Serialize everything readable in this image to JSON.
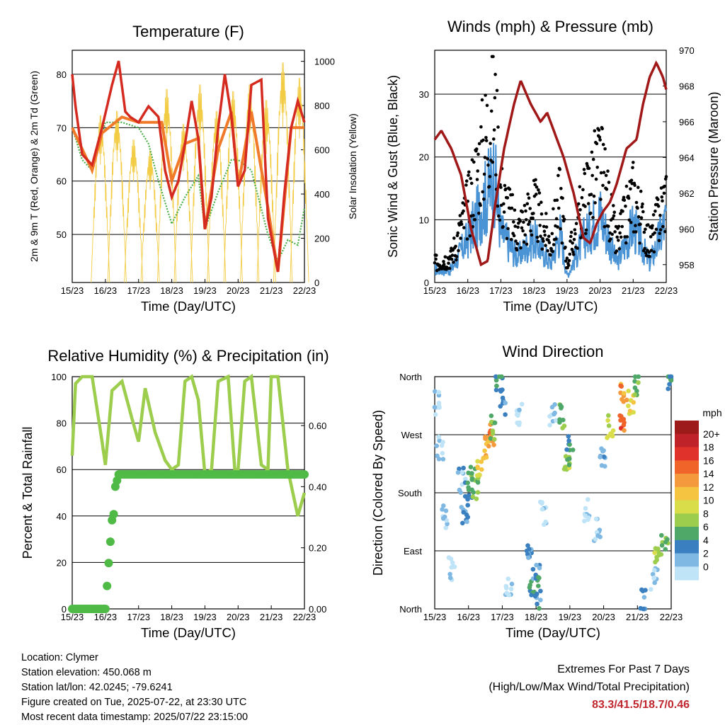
{
  "chart_data": [
    {
      "type": "line",
      "title": "Temperature (F)",
      "xlabel": "Time (Day/UTC)",
      "ylabel": "2m & 9m T (Red, Orange) & 2m Td (Green)",
      "y2label": "Solar Insolation (Yellow)",
      "x_ticks": [
        "15/23",
        "16/23",
        "17/23",
        "18/23",
        "19/23",
        "20/23",
        "21/23",
        "22/23"
      ],
      "y_ticks": [
        50,
        60,
        70,
        80
      ],
      "y2_ticks": [
        0,
        200,
        400,
        600,
        800,
        1000
      ],
      "ylim": [
        41,
        84.5
      ],
      "y2lim": [
        0,
        1050
      ],
      "grid": "horizontal",
      "series": [
        {
          "name": "2m T",
          "color": "#d42a20",
          "x": [
            0,
            0.1,
            0.3,
            0.6,
            0.9,
            1.2,
            1.4,
            1.6,
            1.75,
            2.0,
            2.3,
            2.6,
            2.8,
            3.0,
            3.2,
            3.4,
            3.6,
            3.8,
            4.0,
            4.2,
            4.4,
            4.6,
            4.8,
            5.0,
            5.2,
            5.4,
            5.7,
            5.9,
            6.2,
            6.4,
            6.6,
            6.8,
            7.0
          ],
          "values": [
            80,
            74,
            65,
            63,
            70,
            78,
            82.5,
            73,
            72,
            71,
            74,
            72,
            62,
            57,
            60,
            67,
            75,
            68,
            51,
            57,
            70,
            80,
            72,
            59,
            62,
            78,
            79,
            53,
            43,
            58,
            70,
            75,
            71
          ]
        },
        {
          "name": "9m T",
          "color": "#f07a2a",
          "x": [
            0,
            0.3,
            0.6,
            0.9,
            1.5,
            2.0,
            2.7,
            3.0,
            3.4,
            3.8,
            4.0,
            4.4,
            4.8,
            5.0,
            5.4,
            5.9,
            6.2,
            6.6,
            7.0
          ],
          "values": [
            70,
            66,
            62,
            69,
            72,
            71,
            71,
            60,
            67,
            68,
            51,
            66,
            73,
            59,
            73,
            55,
            43,
            70,
            70
          ]
        },
        {
          "name": "2m Td",
          "color": "#4daf4a",
          "x": [
            0,
            0.3,
            0.6,
            1.0,
            1.5,
            2.0,
            2.3,
            2.6,
            3.0,
            3.4,
            3.8,
            4.0,
            4.4,
            4.8,
            5.0,
            5.4,
            5.9,
            6.2,
            6.5,
            6.8,
            7.0
          ],
          "values": [
            70,
            64,
            62,
            71,
            71,
            70,
            67,
            60,
            52,
            57,
            61,
            51,
            58,
            64,
            64,
            62,
            50,
            45,
            49,
            48,
            55
          ]
        },
        {
          "name": "Solar Insolation",
          "axis": "y2",
          "color": "#f2cc45",
          "x": [
            0.85,
            1.35,
            1.85,
            2.35,
            2.85,
            3.35,
            3.85,
            4.35,
            4.85,
            5.35,
            5.85,
            6.35,
            6.85
          ],
          "values": [
            760,
            780,
            650,
            600,
            880,
            720,
            900,
            780,
            870,
            900,
            830,
            1000,
            930
          ]
        }
      ]
    },
    {
      "type": "scatter",
      "title": "Winds (mph) & Pressure (mb)",
      "xlabel": "Time (Day/UTC)",
      "ylabel": "Sonic Wind & Gust (Blue, Black)",
      "y2label": "Station Pressure (Maroon)",
      "x_ticks": [
        "15/23",
        "16/23",
        "17/23",
        "18/23",
        "19/23",
        "20/23",
        "21/23",
        "22/23"
      ],
      "y_ticks": [
        0,
        10,
        20,
        30
      ],
      "y2_ticks": [
        958,
        960,
        962,
        964,
        966,
        968,
        970
      ],
      "ylim": [
        0,
        37
      ],
      "y2lim": [
        957,
        970
      ],
      "grid": "horizontal",
      "series": [
        {
          "name": "Pressure",
          "axis": "y2",
          "color": "#a01818",
          "x": [
            0,
            0.2,
            0.5,
            0.8,
            1.1,
            1.4,
            1.6,
            1.8,
            2.1,
            2.4,
            2.6,
            2.9,
            3.2,
            3.4,
            3.6,
            3.9,
            4.2,
            4.5,
            4.7,
            4.9,
            5.1,
            5.3,
            5.5,
            5.8,
            6.1,
            6.3,
            6.5,
            6.7,
            6.9,
            7.0
          ],
          "values": [
            965,
            965.5,
            964.5,
            963,
            960,
            958,
            958.2,
            961,
            964.5,
            967,
            968.3,
            967,
            966,
            966.5,
            965.5,
            964,
            962,
            959.5,
            959.2,
            960.3,
            961,
            961.5,
            962.5,
            964.5,
            965,
            967,
            968.5,
            969.3,
            968.5,
            967.8
          ]
        },
        {
          "name": "Gust",
          "color": "#000000",
          "x": [
            0,
            0.5,
            1.0,
            1.5,
            1.8,
            2.0,
            2.5,
            3.0,
            3.5,
            3.8,
            4.0,
            4.5,
            5.0,
            5.5,
            6.0,
            6.5,
            7.0
          ],
          "values": [
            3,
            4,
            12,
            22,
            28,
            14,
            8,
            12,
            6,
            14,
            3,
            13,
            19,
            6,
            14,
            6,
            14
          ]
        },
        {
          "name": "Wind",
          "color": "#4a93d4",
          "x": [
            0,
            0.5,
            1.0,
            1.5,
            1.8,
            2.0,
            2.5,
            3.0,
            3.5,
            3.8,
            4.0,
            4.5,
            5.0,
            5.5,
            6.0,
            6.5,
            7.0
          ],
          "values": [
            2,
            2,
            7,
            13,
            17,
            8,
            4,
            7,
            3,
            8,
            1,
            7,
            11,
            3,
            9,
            3,
            10
          ]
        }
      ]
    },
    {
      "type": "line",
      "title": "Relative Humidity (%) & Precipitation (in)",
      "xlabel": "Time (Day/UTC)",
      "ylabel": "Percent & Total Rainfall",
      "x_ticks": [
        "15/23",
        "16/23",
        "17/23",
        "18/23",
        "19/23",
        "20/23",
        "21/23",
        "22/23"
      ],
      "y_ticks": [
        0,
        20,
        40,
        60,
        80,
        100
      ],
      "y2_ticks": [
        0.0,
        0.2,
        0.4,
        0.6
      ],
      "ylim": [
        0,
        100
      ],
      "y2lim": [
        0,
        0.76
      ],
      "grid": "horizontal",
      "series": [
        {
          "name": "Relative Humidity",
          "color": "#9ccd4d",
          "x": [
            0,
            0.1,
            0.3,
            0.6,
            0.9,
            1.0,
            1.2,
            1.5,
            1.8,
            2.0,
            2.2,
            2.5,
            2.8,
            3.0,
            3.2,
            3.4,
            3.6,
            3.8,
            4.0,
            4.2,
            4.4,
            4.7,
            4.9,
            5.0,
            5.2,
            5.4,
            5.7,
            5.9,
            6.0,
            6.2,
            6.5,
            6.8,
            7.0
          ],
          "values": [
            66,
            97,
            100,
            100,
            72,
            62,
            94,
            98,
            82,
            72,
            95,
            76,
            64,
            60,
            62,
            98,
            100,
            90,
            58,
            60,
            98,
            100,
            60,
            60,
            98,
            100,
            62,
            60,
            100,
            100,
            60,
            40,
            50
          ]
        },
        {
          "name": "Total Precipitation",
          "axis": "y2",
          "color": "#4fba45",
          "x": [
            0,
            0.5,
            1.0,
            1.1,
            1.2,
            1.25,
            1.3,
            1.4,
            1.6,
            2.0,
            2.5,
            3.0,
            3.5,
            4.0,
            4.5,
            5.0,
            5.5,
            6.0,
            6.5,
            7.0
          ],
          "values": [
            0,
            0,
            0,
            0.15,
            0.29,
            0.31,
            0.4,
            0.44,
            0.44,
            0.44,
            0.44,
            0.44,
            0.44,
            0.44,
            0.44,
            0.44,
            0.44,
            0.44,
            0.44,
            0.44
          ]
        }
      ]
    },
    {
      "type": "scatter",
      "title": "Wind Direction",
      "xlabel": "Time (Day/UTC)",
      "ylabel": "Direction (Colored By Speed)",
      "x_ticks": [
        "15/23",
        "16/23",
        "17/23",
        "18/23",
        "19/23",
        "20/23",
        "21/23",
        "22/23"
      ],
      "y_ticks": [
        "North",
        "East",
        "South",
        "West",
        "North"
      ],
      "ylim": [
        0,
        360
      ],
      "grid": "horizontal",
      "colorbar": {
        "title": "mph",
        "labels": [
          "20+",
          "18",
          "16",
          "14",
          "12",
          "10",
          "8",
          "6",
          "4",
          "2",
          "0"
        ],
        "colors": [
          "#9e1b1b",
          "#c0222a",
          "#e0312b",
          "#f0642a",
          "#f59a3c",
          "#f5c542",
          "#d9dd4a",
          "#9ccd4d",
          "#4fa868",
          "#3a7fbf",
          "#7fb8e2",
          "#bfe3f7"
        ]
      },
      "points_x": [
        0.05,
        0.15,
        0.3,
        0.5,
        0.8,
        0.9,
        1.0,
        1.1,
        1.2,
        1.35,
        1.5,
        1.65,
        1.75,
        1.9,
        2.0,
        2.2,
        2.5,
        2.8,
        2.9,
        3.0,
        3.05,
        3.2,
        3.5,
        3.8,
        3.9,
        4.0,
        4.5,
        4.8,
        5.0,
        5.2,
        5.5,
        5.6,
        5.8,
        6.0,
        6.2,
        6.5,
        6.6,
        6.8,
        7.0
      ],
      "points_dir": [
        320,
        250,
        140,
        60,
        200,
        140,
        180,
        200,
        190,
        220,
        250,
        270,
        280,
        350,
        320,
        40,
        300,
        80,
        40,
        60,
        20,
        150,
        300,
        300,
        230,
        250,
        150,
        120,
        230,
        280,
        290,
        330,
        320,
        350,
        10,
        50,
        90,
        100,
        360
      ],
      "points_speed": [
        1,
        2,
        1,
        1,
        3,
        4,
        6,
        7,
        8,
        12,
        14,
        16,
        8,
        6,
        4,
        2,
        1,
        4,
        6,
        5,
        5,
        1,
        2,
        8,
        9,
        6,
        2,
        2,
        4,
        10,
        17,
        15,
        12,
        8,
        4,
        2,
        9,
        8,
        6
      ]
    }
  ],
  "info": {
    "location": "Location: Clymer",
    "elevation": "Station elevation: 450.068 m",
    "latlon": "Station lat/lon: 42.0245; -79.6241",
    "created": "Figure created on Tue, 2025-07-22, at 23:30 UTC",
    "recent": "Most recent data timestamp: 2025/07/22 23:15:00"
  },
  "extremes": {
    "title": "Extremes For Past 7 Days",
    "subtitle": "(High/Low/Max Wind/Total Precipitation)",
    "values": "83.3/41.5/18.7/0.46"
  }
}
